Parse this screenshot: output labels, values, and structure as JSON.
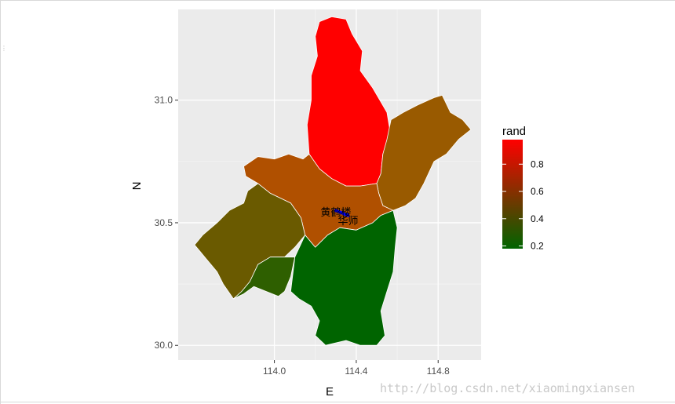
{
  "watermark": "http://blog.csdn.net/xiaomingxiansen",
  "chart_data": {
    "type": "map",
    "xlabel": "E",
    "ylabel": "N",
    "xlim": [
      113.53,
      115.01
    ],
    "ylim": [
      29.94,
      31.37
    ],
    "x_ticks": [
      114.0,
      114.4,
      114.8
    ],
    "x_tick_labels": [
      "114.0",
      "114.4",
      "114.8"
    ],
    "y_ticks": [
      30.0,
      30.5,
      31.0
    ],
    "y_tick_labels": [
      "30.0",
      "30.5",
      "31.0"
    ],
    "grid": true,
    "legend": {
      "title": "rand",
      "position": "right",
      "low_color": "#006400",
      "high_color": "#ff0000",
      "range": [
        0.18,
        0.98
      ],
      "ticks": [
        0.2,
        0.4,
        0.6,
        0.8
      ],
      "tick_labels": [
        "0.2",
        "0.4",
        "0.6",
        "0.8"
      ]
    },
    "regions": [
      {
        "value": 0.98,
        "fill": "#ff0000",
        "outline": [
          [
            114.22,
            31.32
          ],
          [
            114.28,
            31.34
          ],
          [
            114.35,
            31.33
          ],
          [
            114.38,
            31.27
          ],
          [
            114.43,
            31.2
          ],
          [
            114.42,
            31.12
          ],
          [
            114.48,
            31.05
          ],
          [
            114.55,
            30.95
          ],
          [
            114.57,
            30.85
          ],
          [
            114.53,
            30.78
          ],
          [
            114.52,
            30.7
          ],
          [
            114.5,
            30.66
          ],
          [
            114.42,
            30.65
          ],
          [
            114.35,
            30.65
          ],
          [
            114.28,
            30.68
          ],
          [
            114.22,
            30.72
          ],
          [
            114.17,
            30.78
          ],
          [
            114.16,
            30.9
          ],
          [
            114.18,
            31.0
          ],
          [
            114.18,
            31.1
          ],
          [
            114.21,
            31.18
          ],
          [
            114.2,
            31.26
          ]
        ]
      },
      {
        "value": 0.56,
        "fill": "#995a00",
        "outline": [
          [
            114.57,
            30.92
          ],
          [
            114.63,
            30.95
          ],
          [
            114.7,
            30.98
          ],
          [
            114.78,
            31.01
          ],
          [
            114.82,
            31.02
          ],
          [
            114.86,
            30.95
          ],
          [
            114.92,
            30.92
          ],
          [
            114.96,
            30.88
          ],
          [
            114.9,
            30.84
          ],
          [
            114.84,
            30.78
          ],
          [
            114.78,
            30.75
          ],
          [
            114.73,
            30.66
          ],
          [
            114.69,
            30.6
          ],
          [
            114.64,
            30.57
          ],
          [
            114.58,
            30.55
          ],
          [
            114.53,
            30.57
          ],
          [
            114.51,
            30.62
          ],
          [
            114.5,
            30.66
          ],
          [
            114.52,
            30.7
          ],
          [
            114.53,
            30.78
          ],
          [
            114.55,
            30.84
          ]
        ]
      },
      {
        "value": 0.62,
        "fill": "#b05000",
        "outline": [
          [
            113.85,
            30.73
          ],
          [
            113.92,
            30.77
          ],
          [
            114.0,
            30.76
          ],
          [
            114.07,
            30.78
          ],
          [
            114.14,
            30.76
          ],
          [
            114.17,
            30.78
          ],
          [
            114.22,
            30.72
          ],
          [
            114.28,
            30.68
          ],
          [
            114.35,
            30.65
          ],
          [
            114.42,
            30.65
          ],
          [
            114.5,
            30.66
          ],
          [
            114.51,
            30.62
          ],
          [
            114.53,
            30.57
          ],
          [
            114.58,
            30.55
          ],
          [
            114.52,
            30.53
          ],
          [
            114.48,
            30.5
          ],
          [
            114.4,
            30.47
          ],
          [
            114.32,
            30.48
          ],
          [
            114.26,
            30.45
          ],
          [
            114.2,
            30.4
          ],
          [
            114.15,
            30.45
          ],
          [
            114.13,
            30.52
          ],
          [
            114.08,
            30.58
          ],
          [
            113.98,
            30.62
          ],
          [
            113.92,
            30.66
          ],
          [
            113.86,
            30.69
          ]
        ]
      },
      {
        "value": 0.42,
        "fill": "#6a5a00",
        "outline": [
          [
            113.92,
            30.66
          ],
          [
            113.98,
            30.62
          ],
          [
            114.08,
            30.58
          ],
          [
            114.13,
            30.52
          ],
          [
            114.15,
            30.45
          ],
          [
            114.1,
            30.4
          ],
          [
            114.05,
            30.36
          ],
          [
            113.98,
            30.36
          ],
          [
            113.92,
            30.33
          ],
          [
            113.88,
            30.26
          ],
          [
            113.84,
            30.22
          ],
          [
            113.8,
            30.19
          ],
          [
            113.75,
            30.25
          ],
          [
            113.72,
            30.3
          ],
          [
            113.66,
            30.36
          ],
          [
            113.61,
            30.41
          ],
          [
            113.65,
            30.45
          ],
          [
            113.72,
            30.5
          ],
          [
            113.78,
            30.55
          ],
          [
            113.85,
            30.58
          ],
          [
            113.87,
            30.63
          ]
        ]
      },
      {
        "value": 0.28,
        "fill": "#2e5f00",
        "outline": [
          [
            113.8,
            30.19
          ],
          [
            113.84,
            30.22
          ],
          [
            113.88,
            30.26
          ],
          [
            113.92,
            30.33
          ],
          [
            113.98,
            30.36
          ],
          [
            114.05,
            30.36
          ],
          [
            114.1,
            30.36
          ],
          [
            114.08,
            30.28
          ],
          [
            114.05,
            30.22
          ],
          [
            114.02,
            30.2
          ],
          [
            113.96,
            30.22
          ],
          [
            113.9,
            30.24
          ],
          [
            113.85,
            30.21
          ]
        ]
      },
      {
        "value": 0.18,
        "fill": "#006400",
        "outline": [
          [
            114.08,
            30.22
          ],
          [
            114.1,
            30.36
          ],
          [
            114.15,
            30.45
          ],
          [
            114.2,
            30.4
          ],
          [
            114.26,
            30.45
          ],
          [
            114.32,
            30.48
          ],
          [
            114.4,
            30.47
          ],
          [
            114.48,
            30.5
          ],
          [
            114.52,
            30.53
          ],
          [
            114.58,
            30.55
          ],
          [
            114.6,
            30.48
          ],
          [
            114.59,
            30.4
          ],
          [
            114.58,
            30.3
          ],
          [
            114.55,
            30.22
          ],
          [
            114.52,
            30.14
          ],
          [
            114.54,
            30.04
          ],
          [
            114.5,
            30.0
          ],
          [
            114.42,
            30.0
          ],
          [
            114.35,
            30.02
          ],
          [
            114.25,
            30.0
          ],
          [
            114.2,
            30.04
          ],
          [
            114.22,
            30.1
          ],
          [
            114.18,
            30.16
          ],
          [
            114.12,
            30.19
          ]
        ]
      }
    ],
    "annotations": [
      {
        "label": "黄鹤楼",
        "x": 114.3,
        "y": 30.545,
        "color": "#000000"
      },
      {
        "label": "华师",
        "x": 114.36,
        "y": 30.51,
        "color": "#000000"
      }
    ],
    "route_line": {
      "color": "#0000ff",
      "points": [
        [
          114.3,
          30.55
        ],
        [
          114.33,
          30.54
        ],
        [
          114.36,
          30.53
        ]
      ]
    }
  }
}
